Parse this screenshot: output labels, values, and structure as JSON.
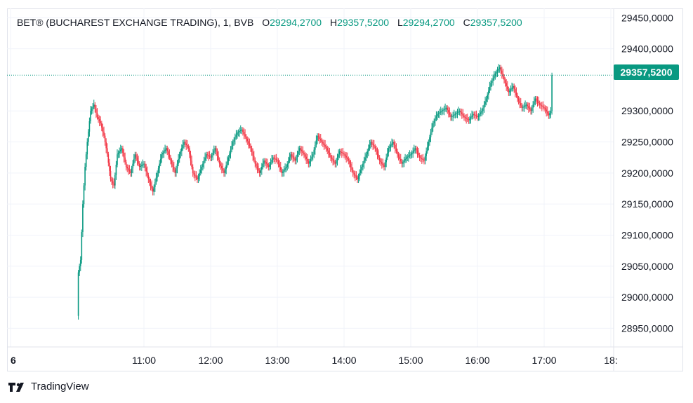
{
  "chart_data": {
    "type": "candlestick",
    "title": "BET® (BUCHAREST EXCHANGE TRADING), 1, BVB",
    "ohlc": {
      "open_label": "O",
      "open": "29294,2700",
      "high_label": "H",
      "high": "29357,5200",
      "low_label": "L",
      "low": "29294,2700",
      "close_label": "C",
      "close": "29357,5200"
    },
    "last_price": 29357.52,
    "last_price_label": "29357,5200",
    "ylim": [
      28920,
      29465
    ],
    "y_ticks": [
      29450,
      29400,
      29300,
      29250,
      29200,
      29150,
      29100,
      29050,
      29000,
      28950
    ],
    "y_tick_labels": [
      "29450,0000",
      "29400,0000",
      "29300,0000",
      "29250,0000",
      "29200,0000",
      "29150,0000",
      "29100,0000",
      "29050,0000",
      "29000,0000",
      "28950,0000"
    ],
    "x_ticks": [
      "6",
      "11:00",
      "12:00",
      "13:00",
      "14:00",
      "15:00",
      "16:00",
      "17:00",
      "18:"
    ],
    "x_tick_minutes": [
      540,
      660,
      720,
      780,
      840,
      900,
      960,
      1020,
      1080
    ],
    "series_points": [
      [
        600,
        28970
      ],
      [
        601,
        29040
      ],
      [
        603,
        29060
      ],
      [
        605,
        29150
      ],
      [
        607,
        29210
      ],
      [
        609,
        29250
      ],
      [
        612,
        29300
      ],
      [
        615,
        29310
      ],
      [
        618,
        29290
      ],
      [
        621,
        29280
      ],
      [
        624,
        29260
      ],
      [
        627,
        29230
      ],
      [
        630,
        29190
      ],
      [
        633,
        29180
      ],
      [
        636,
        29230
      ],
      [
        640,
        29240
      ],
      [
        644,
        29210
      ],
      [
        648,
        29200
      ],
      [
        652,
        29230
      ],
      [
        656,
        29210
      ],
      [
        660,
        29215
      ],
      [
        664,
        29190
      ],
      [
        668,
        29170
      ],
      [
        672,
        29200
      ],
      [
        676,
        29230
      ],
      [
        680,
        29240
      ],
      [
        684,
        29220
      ],
      [
        688,
        29200
      ],
      [
        692,
        29230
      ],
      [
        696,
        29250
      ],
      [
        700,
        29240
      ],
      [
        704,
        29200
      ],
      [
        708,
        29190
      ],
      [
        712,
        29210
      ],
      [
        716,
        29230
      ],
      [
        720,
        29225
      ],
      [
        724,
        29240
      ],
      [
        728,
        29215
      ],
      [
        732,
        29200
      ],
      [
        736,
        29225
      ],
      [
        740,
        29250
      ],
      [
        744,
        29265
      ],
      [
        748,
        29270
      ],
      [
        752,
        29255
      ],
      [
        756,
        29240
      ],
      [
        760,
        29215
      ],
      [
        764,
        29200
      ],
      [
        768,
        29220
      ],
      [
        772,
        29210
      ],
      [
        776,
        29225
      ],
      [
        780,
        29220
      ],
      [
        784,
        29200
      ],
      [
        788,
        29210
      ],
      [
        792,
        29230
      ],
      [
        796,
        29220
      ],
      [
        800,
        29240
      ],
      [
        804,
        29230
      ],
      [
        808,
        29215
      ],
      [
        812,
        29230
      ],
      [
        816,
        29260
      ],
      [
        820,
        29250
      ],
      [
        824,
        29240
      ],
      [
        828,
        29225
      ],
      [
        832,
        29215
      ],
      [
        836,
        29235
      ],
      [
        840,
        29230
      ],
      [
        844,
        29220
      ],
      [
        848,
        29200
      ],
      [
        852,
        29190
      ],
      [
        856,
        29210
      ],
      [
        860,
        29230
      ],
      [
        864,
        29250
      ],
      [
        868,
        29240
      ],
      [
        872,
        29220
      ],
      [
        876,
        29210
      ],
      [
        880,
        29240
      ],
      [
        884,
        29250
      ],
      [
        888,
        29230
      ],
      [
        892,
        29215
      ],
      [
        896,
        29225
      ],
      [
        900,
        29230
      ],
      [
        904,
        29240
      ],
      [
        908,
        29225
      ],
      [
        912,
        29220
      ],
      [
        916,
        29250
      ],
      [
        920,
        29280
      ],
      [
        924,
        29295
      ],
      [
        928,
        29300
      ],
      [
        932,
        29305
      ],
      [
        936,
        29290
      ],
      [
        940,
        29295
      ],
      [
        944,
        29300
      ],
      [
        948,
        29290
      ],
      [
        952,
        29285
      ],
      [
        956,
        29295
      ],
      [
        960,
        29290
      ],
      [
        964,
        29300
      ],
      [
        968,
        29320
      ],
      [
        972,
        29345
      ],
      [
        976,
        29360
      ],
      [
        980,
        29370
      ],
      [
        984,
        29350
      ],
      [
        988,
        29330
      ],
      [
        992,
        29340
      ],
      [
        996,
        29320
      ],
      [
        1000,
        29305
      ],
      [
        1004,
        29310
      ],
      [
        1008,
        29300
      ],
      [
        1012,
        29320
      ],
      [
        1016,
        29310
      ],
      [
        1020,
        29305
      ],
      [
        1024,
        29293
      ],
      [
        1026,
        29300
      ],
      [
        1027,
        29357.52
      ]
    ],
    "series": [
      {
        "values": "series_points",
        "color_up": "#089981",
        "color_down": "#f23645"
      }
    ],
    "grid": true,
    "price_line_color": "#089981"
  },
  "brand": {
    "name": "TradingView",
    "icon": "tradingview-logo-icon"
  }
}
